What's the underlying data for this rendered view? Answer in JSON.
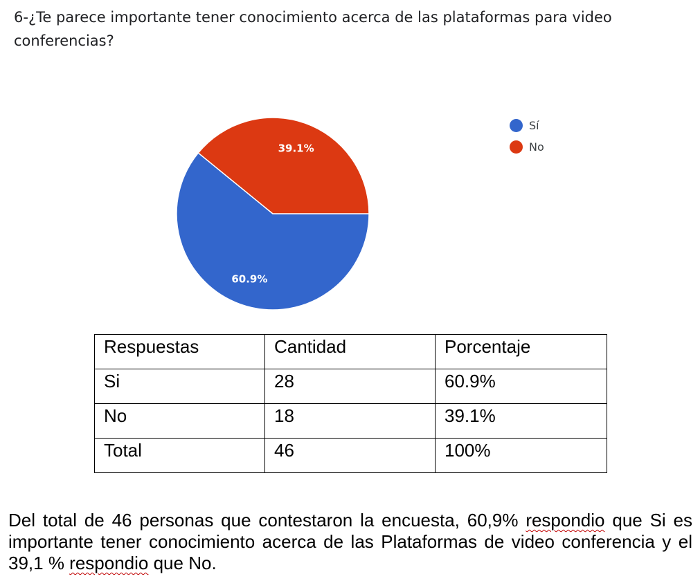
{
  "question": {
    "text": "6-¿Te parece importante tener conocimiento acerca de las plataformas para video conferencias?"
  },
  "colors": {
    "si": "#3366cc",
    "no": "#dc3912"
  },
  "chart_data": {
    "type": "pie",
    "title": "",
    "slices": [
      {
        "label": "Sí",
        "value": 60.9,
        "display": "60.9%",
        "color": "#3366cc"
      },
      {
        "label": "No",
        "value": 39.1,
        "display": "39.1%",
        "color": "#dc3912"
      }
    ],
    "legend": {
      "placement": "top-right",
      "entries": [
        "Sí",
        "No"
      ]
    }
  },
  "table": {
    "headers": [
      "Respuestas",
      "Cantidad",
      "Porcentaje"
    ],
    "rows": [
      [
        "Si",
        "28",
        "60.9%"
      ],
      [
        "No",
        "18",
        "39.1%"
      ],
      [
        "Total",
        "46",
        "100%"
      ]
    ]
  },
  "summary": {
    "part1": "Del total de 46 personas que contestaron la encuesta, 60,9% ",
    "flag1": "respondio",
    "part2": " que Si es importante tener conocimiento acerca de las Plataformas de video conferencia y el 39,1 % ",
    "flag2": "respondio",
    "part3": " que No."
  }
}
